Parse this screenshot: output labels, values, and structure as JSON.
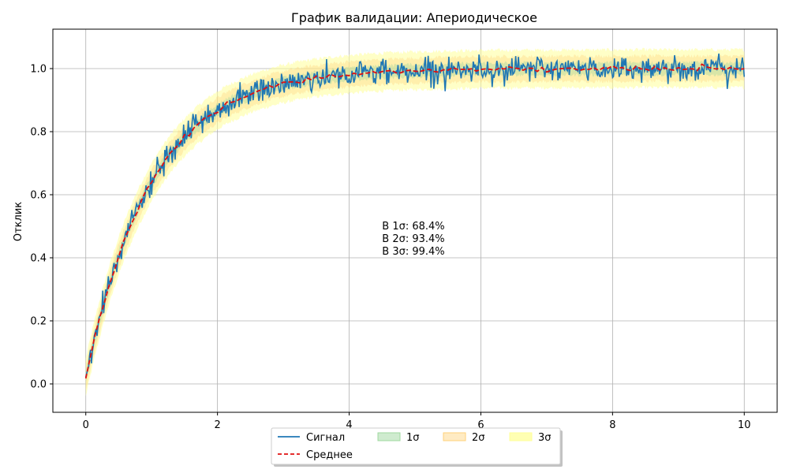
{
  "chart_data": {
    "type": "line",
    "title": "График валидации: Апериодическое",
    "xlabel": "",
    "ylabel": "Отклик",
    "xlim": [
      -0.5,
      10.5
    ],
    "ylim": [
      -0.09,
      1.125
    ],
    "x_ticks": [
      0,
      2,
      4,
      6,
      8,
      10
    ],
    "y_ticks": [
      0.0,
      0.2,
      0.4,
      0.6,
      0.8,
      1.0
    ],
    "grid": true,
    "legend_position": "bottom-center",
    "model": {
      "type": "first-order-step",
      "time_constant": 1.0,
      "x_start": 0,
      "x_end": 10
    },
    "noise_sigma": 0.02,
    "series": [
      {
        "name": "Сигнал",
        "style": "solid",
        "color": "#1f77b4",
        "x": [
          0,
          0.25,
          0.5,
          0.75,
          1,
          1.25,
          1.5,
          1.75,
          2,
          2.5,
          3,
          3.5,
          4,
          4.5,
          5,
          5.5,
          6,
          6.5,
          7,
          7.5,
          8,
          8.5,
          9,
          9.5,
          10
        ],
        "y": [
          0.02,
          0.24,
          0.4,
          0.52,
          0.64,
          0.72,
          0.78,
          0.83,
          0.87,
          0.92,
          0.95,
          0.97,
          0.98,
          0.99,
          0.995,
          0.997,
          0.998,
          0.999,
          1.0,
          1.0,
          1.0,
          1.0,
          1.0,
          1.0,
          0.98
        ]
      },
      {
        "name": "Среднее",
        "style": "dashed",
        "color": "#e01010",
        "x": [
          0,
          0.25,
          0.5,
          0.75,
          1,
          1.25,
          1.5,
          1.75,
          2,
          2.5,
          3,
          3.5,
          4,
          4.5,
          5,
          5.5,
          6,
          6.5,
          7,
          7.5,
          8,
          8.5,
          9,
          9.5,
          10
        ],
        "y": [
          0.02,
          0.23,
          0.4,
          0.53,
          0.64,
          0.72,
          0.78,
          0.83,
          0.87,
          0.92,
          0.95,
          0.97,
          0.98,
          0.99,
          0.993,
          0.996,
          0.997,
          0.998,
          0.999,
          0.999,
          1.0,
          1.0,
          1.0,
          1.0,
          1.0
        ]
      }
    ],
    "bands": [
      {
        "name": "3σ",
        "k": 3,
        "color": "#ffff99",
        "opacity": 0.55
      },
      {
        "name": "2σ",
        "k": 2,
        "color": "#ffd27a",
        "opacity": 0.35
      },
      {
        "name": "1σ",
        "k": 1,
        "color": "#9fd89f",
        "opacity": 0.4
      }
    ],
    "annotations": [
      "В 1σ: 68.4%",
      "В 2σ: 93.4%",
      "В 3σ: 99.4%"
    ],
    "annotation_anchor": [
      4.5,
      0.45
    ],
    "legend": [
      "Сигнал",
      "Среднее",
      "1σ",
      "2σ",
      "3σ"
    ]
  }
}
